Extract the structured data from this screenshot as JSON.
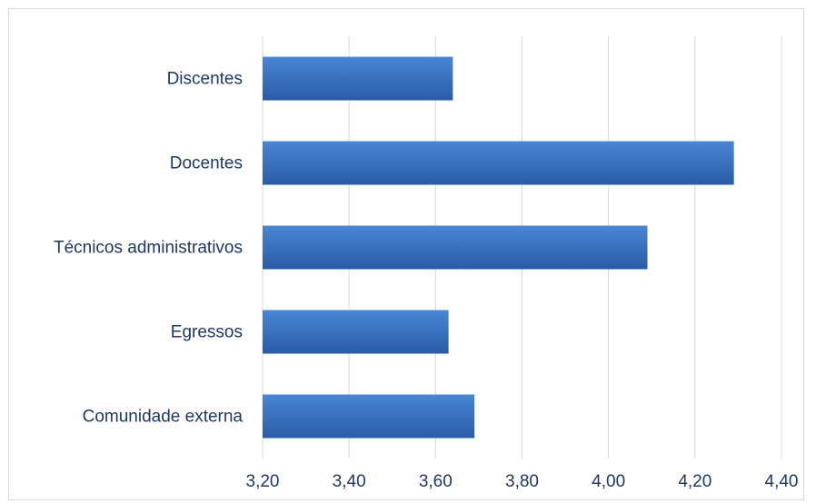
{
  "chart_data": {
    "type": "bar",
    "orientation": "horizontal",
    "title": "",
    "xlabel": "",
    "ylabel": "",
    "categories": [
      "Discentes",
      "Docentes",
      "Técnicos administrativos",
      "Egressos",
      "Comunidade externa"
    ],
    "values": [
      3.64,
      4.29,
      4.09,
      3.63,
      3.69
    ],
    "xlim": [
      3.2,
      4.4
    ],
    "x_ticks": [
      "3,20",
      "3,40",
      "3,60",
      "3,80",
      "4,00",
      "4,20",
      "4,40"
    ],
    "grid": "vertical",
    "legend": "none",
    "colors": {
      "bar_top": "#4a86d4",
      "bar_bottom": "#2a5ca6",
      "grid": "#d9d9d9",
      "text": "#1f3864"
    }
  }
}
